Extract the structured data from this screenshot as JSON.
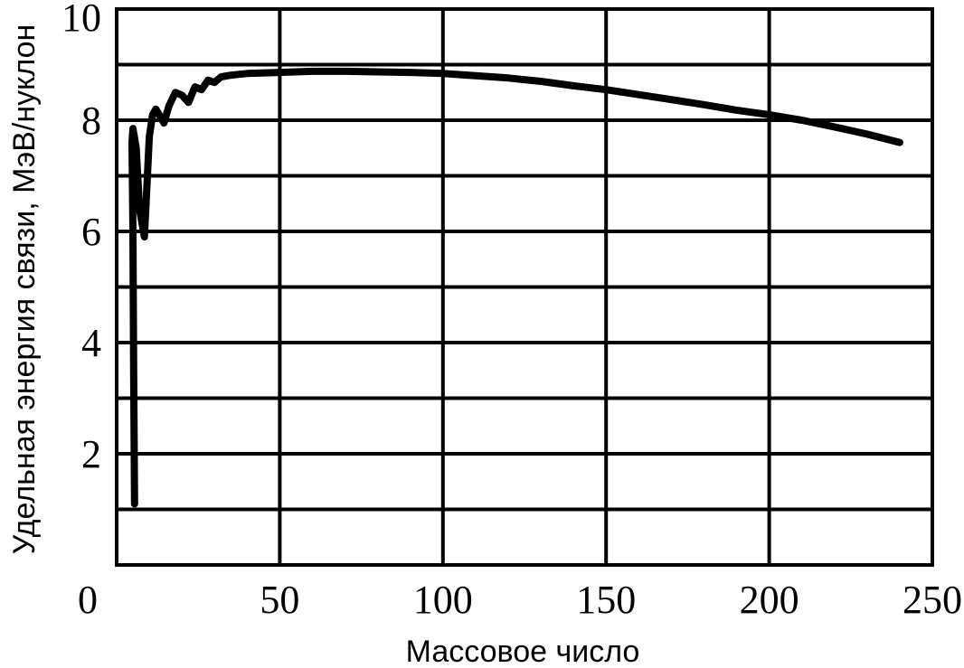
{
  "chart_data": {
    "type": "line",
    "title": "",
    "xlabel": "Массовое число",
    "ylabel": "Удельная энергия связи, МэВ/нуклон",
    "xlim": [
      0,
      250
    ],
    "ylim": [
      0,
      10
    ],
    "grid": true,
    "x_ticks": [
      "0",
      "50",
      "100",
      "150",
      "200",
      "250"
    ],
    "y_ticks": [
      "2",
      "4",
      "6",
      "8",
      "10"
    ],
    "series": [
      {
        "values": [
          [
            5.5,
            1.1
          ],
          [
            5.2,
            3.5
          ],
          [
            5.0,
            6.0
          ],
          [
            4.7,
            7.6
          ],
          [
            5.0,
            7.85
          ],
          [
            6.0,
            7.5
          ],
          [
            7.0,
            6.4
          ],
          [
            8.5,
            5.9
          ],
          [
            9.0,
            6.5
          ],
          [
            10.0,
            7.7
          ],
          [
            11.0,
            8.1
          ],
          [
            12.0,
            8.2
          ],
          [
            13.5,
            8.05
          ],
          [
            14.5,
            7.95
          ],
          [
            16.0,
            8.25
          ],
          [
            18.0,
            8.5
          ],
          [
            20.0,
            8.45
          ],
          [
            22.0,
            8.32
          ],
          [
            24.0,
            8.6
          ],
          [
            26.0,
            8.55
          ],
          [
            28.0,
            8.72
          ],
          [
            30.0,
            8.68
          ],
          [
            32.0,
            8.78
          ],
          [
            35.0,
            8.81
          ],
          [
            40.0,
            8.84
          ],
          [
            50.0,
            8.86
          ],
          [
            60.0,
            8.88
          ],
          [
            70.0,
            8.88
          ],
          [
            80.0,
            8.87
          ],
          [
            90.0,
            8.86
          ],
          [
            100.0,
            8.84
          ],
          [
            110.0,
            8.8
          ],
          [
            120.0,
            8.76
          ],
          [
            130.0,
            8.7
          ],
          [
            140.0,
            8.62
          ],
          [
            150.0,
            8.55
          ],
          [
            160.0,
            8.46
          ],
          [
            170.0,
            8.37
          ],
          [
            180.0,
            8.28
          ],
          [
            190.0,
            8.18
          ],
          [
            200.0,
            8.1
          ],
          [
            210.0,
            8.0
          ],
          [
            220.0,
            7.88
          ],
          [
            230.0,
            7.75
          ],
          [
            240.0,
            7.6
          ]
        ]
      }
    ]
  },
  "colors": {
    "line": "#000000",
    "grid": "#000000",
    "background": "#ffffff"
  }
}
